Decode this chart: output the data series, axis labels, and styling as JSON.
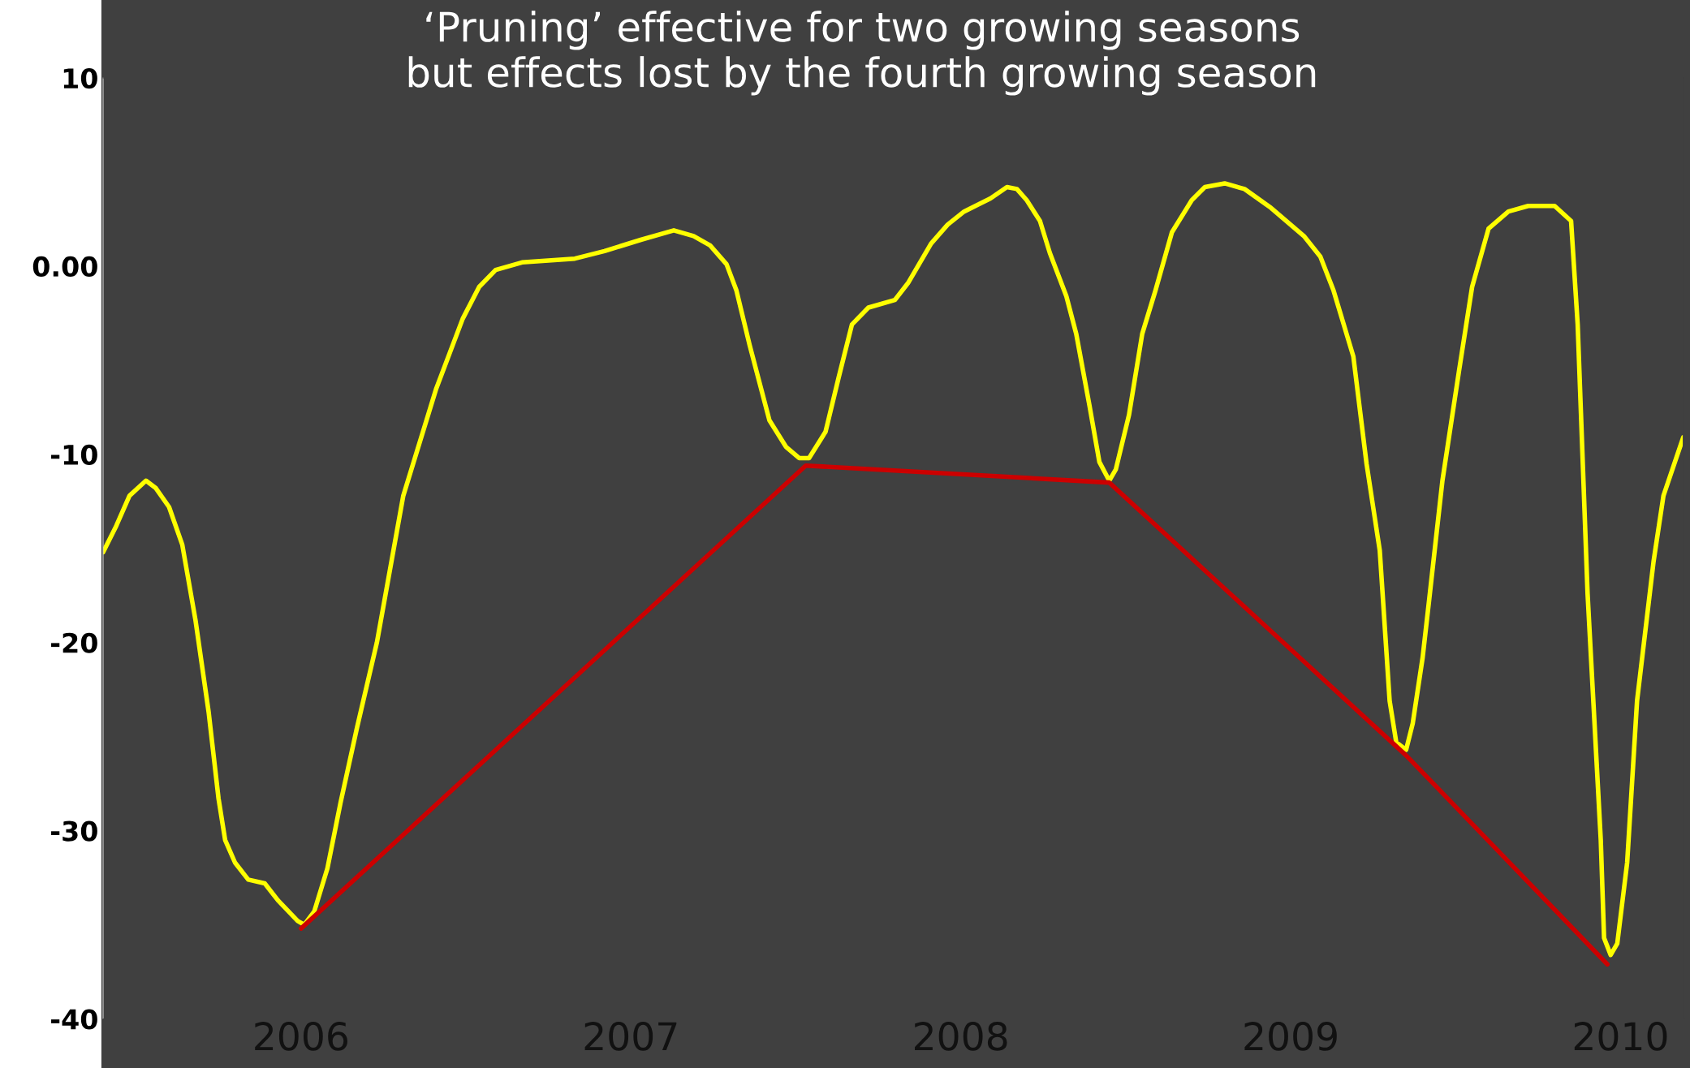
{
  "chart_data": {
    "type": "line",
    "title": "‘Pruning’ effective for two growing seasons\nbut effects lost by the fourth growing season",
    "xlim": [
      2005.4,
      2010.19
    ],
    "xticks": [
      2006,
      2007,
      2008,
      2009,
      2010
    ],
    "ylim": [
      -40,
      10
    ],
    "yticks": [
      10,
      {
        "value": 0,
        "label": "0.00"
      },
      -10,
      -20,
      -30,
      -40
    ],
    "grid": false,
    "series": [
      {
        "color": "#ffff00",
        "x": [
          2005.4,
          2005.44,
          2005.48,
          2005.53,
          2005.56,
          2005.6,
          2005.64,
          2005.68,
          2005.72,
          2005.75,
          2005.77,
          2005.8,
          2005.84,
          2005.89,
          2005.93,
          2005.99,
          2006.01,
          2006.04,
          2006.08,
          2006.12,
          2006.17,
          2006.23,
          2006.31,
          2006.41,
          2006.49,
          2006.54,
          2006.59,
          2006.67,
          2006.83,
          2006.92,
          2007.03,
          2007.13,
          2007.19,
          2007.24,
          2007.29,
          2007.32,
          2007.36,
          2007.42,
          2007.47,
          2007.51,
          2007.54,
          2007.59,
          2007.63,
          2007.67,
          2007.72,
          2007.8,
          2007.84,
          2007.91,
          2007.96,
          2008.01,
          2008.09,
          2008.14,
          2008.17,
          2008.2,
          2008.24,
          2008.27,
          2008.32,
          2008.35,
          2008.39,
          2008.42,
          2008.45,
          2008.47,
          2008.51,
          2008.55,
          2008.59,
          2008.64,
          2008.7,
          2008.74,
          2008.8,
          2008.86,
          2008.94,
          2009.04,
          2009.09,
          2009.13,
          2009.19,
          2009.23,
          2009.27,
          2009.3,
          2009.32,
          2009.35,
          2009.37,
          2009.4,
          2009.42,
          2009.46,
          2009.51,
          2009.55,
          2009.6,
          2009.66,
          2009.72,
          2009.8,
          2009.85,
          2009.87,
          2009.9,
          2009.94,
          2009.95,
          2009.97,
          2009.99,
          2010.02,
          2010.05,
          2010.1,
          2010.13,
          2010.19
        ],
        "values": [
          -15.2,
          -13.8,
          -12.2,
          -11.4,
          -11.8,
          -12.8,
          -14.8,
          -18.8,
          -23.7,
          -28.3,
          -30.5,
          -31.7,
          -32.6,
          -32.8,
          -33.7,
          -34.8,
          -35.0,
          -34.3,
          -32.0,
          -28.5,
          -24.5,
          -20.0,
          -12.2,
          -6.5,
          -2.8,
          -1.1,
          -0.2,
          0.2,
          0.4,
          0.8,
          1.4,
          1.9,
          1.6,
          1.1,
          0.1,
          -1.3,
          -4.2,
          -8.2,
          -9.6,
          -10.2,
          -10.2,
          -8.8,
          -5.9,
          -3.1,
          -2.2,
          -1.8,
          -0.9,
          1.2,
          2.2,
          2.9,
          3.6,
          4.2,
          4.1,
          3.5,
          2.4,
          0.7,
          -1.6,
          -3.6,
          -7.4,
          -10.4,
          -11.4,
          -10.8,
          -7.9,
          -3.6,
          -1.3,
          1.8,
          3.5,
          4.2,
          4.4,
          4.1,
          3.1,
          1.6,
          0.5,
          -1.3,
          -4.8,
          -10.5,
          -15.1,
          -23.1,
          -25.3,
          -25.7,
          -24.3,
          -20.8,
          -17.7,
          -11.4,
          -5.6,
          -1.1,
          2.0,
          2.9,
          3.2,
          3.2,
          2.4,
          -3.1,
          -17.4,
          -30.5,
          -35.7,
          -36.6,
          -36.0,
          -31.7,
          -23.1,
          -15.7,
          -12.2,
          -9.1
        ]
      },
      {
        "color": "#cc0000",
        "x": [
          2006.0,
          2007.53,
          2008.45,
          2009.35,
          2009.96
        ],
        "values": [
          -35.2,
          -10.6,
          -11.5,
          -26.0,
          -37.1
        ]
      }
    ]
  }
}
